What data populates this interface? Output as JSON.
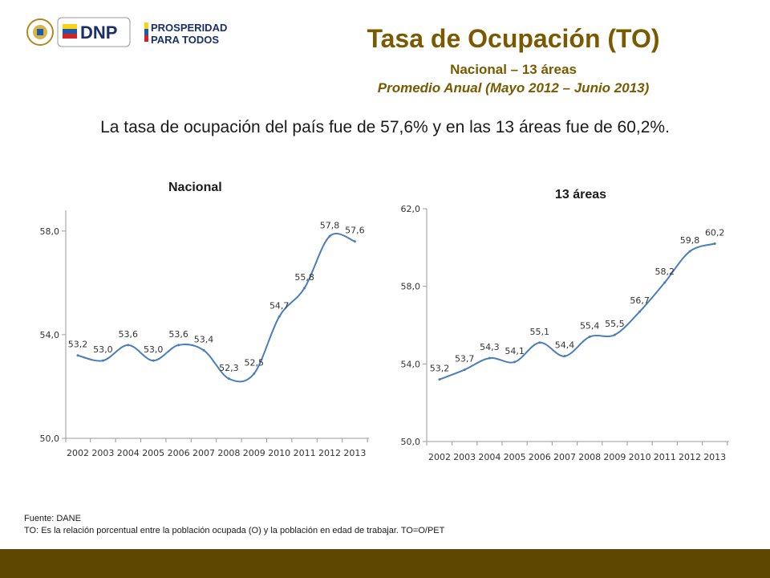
{
  "logos": {
    "dnp_text": "DNP",
    "prosperidad_line1": "PROSPERIDAD",
    "prosperidad_line2": "PARA TODOS"
  },
  "header": {
    "title": "Tasa de Ocupación (TO)",
    "subtitle1": "Nacional – 13 áreas",
    "subtitle2": "Promedio Anual (Mayo 2012 – Junio 2013)"
  },
  "lead_text": "La tasa de ocupación del país fue de 57,6% y en las 13 áreas fue de 60,2%.",
  "colors": {
    "title": "#7a5a00",
    "line": "#4a7ebb",
    "footer_bar": "#5e4700"
  },
  "chart_data": [
    {
      "type": "line",
      "title": "Nacional",
      "categories": [
        "2002",
        "2003",
        "2004",
        "2005",
        "2006",
        "2007",
        "2008",
        "2009",
        "2010",
        "2011",
        "2012",
        "2013"
      ],
      "values": [
        53.2,
        53.0,
        53.6,
        53.0,
        53.6,
        53.4,
        52.3,
        52.5,
        54.7,
        55.8,
        57.8,
        57.6
      ],
      "data_labels": [
        "53,2",
        "53,0",
        "53,6",
        "53,0",
        "53,6",
        "53,4",
        "52,3",
        "52,5",
        "54,7",
        "55,8",
        "57,8",
        "57,6"
      ],
      "ylim": [
        50,
        58.8
      ],
      "yticks": [
        50,
        54,
        58
      ],
      "ytick_labels": [
        "50,0",
        "54,0",
        "58,0"
      ],
      "xlabel": "",
      "ylabel": "",
      "grid": false
    },
    {
      "type": "line",
      "title": "13 áreas",
      "categories": [
        "2002",
        "2003",
        "2004",
        "2005",
        "2006",
        "2007",
        "2008",
        "2009",
        "2010",
        "2011",
        "2012",
        "2013"
      ],
      "values": [
        53.2,
        53.7,
        54.3,
        54.1,
        55.1,
        54.4,
        55.4,
        55.5,
        56.7,
        58.2,
        59.8,
        60.2
      ],
      "data_labels": [
        "53,2",
        "53,7",
        "54,3",
        "54,1",
        "55,1",
        "54,4",
        "55,4",
        "55,5",
        "56,7",
        "58,2",
        "59,8",
        "60,2"
      ],
      "ylim": [
        50,
        62
      ],
      "yticks": [
        50,
        54,
        58,
        62
      ],
      "ytick_labels": [
        "50,0",
        "54,0",
        "58,0",
        "62,0"
      ],
      "xlabel": "",
      "ylabel": "",
      "grid": false
    }
  ],
  "footer": {
    "source": "Fuente: DANE",
    "note": "TO: Es la relación porcentual entre la población ocupada (O) y la población  en edad de trabajar. TO=O/PET"
  }
}
